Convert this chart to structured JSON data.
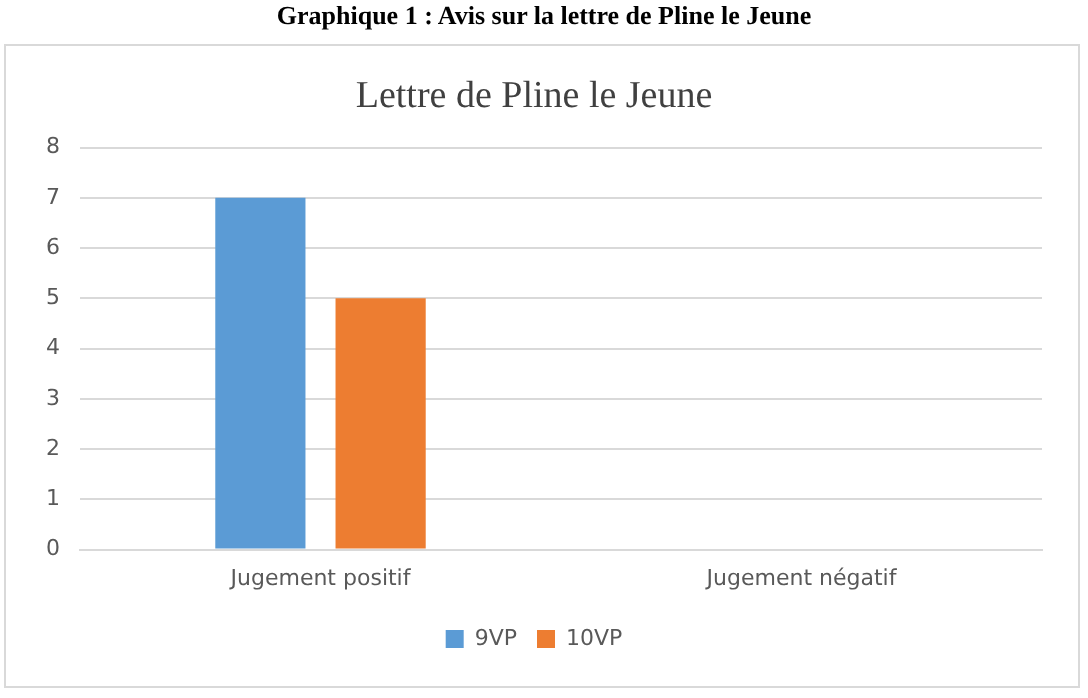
{
  "chart_data": {
    "type": "bar",
    "title": "Graphique 1 : Avis sur la lettre de Pline le Jeune",
    "subtitle": "Lettre de Pline le Jeune",
    "categories": [
      "Jugement positif",
      "Jugement négatif"
    ],
    "series": [
      {
        "name": "9VP",
        "color": "#5b9bd5",
        "values": [
          7,
          0
        ]
      },
      {
        "name": "10VP",
        "color": "#ed7d31",
        "values": [
          5,
          0
        ]
      }
    ],
    "ylim": [
      0,
      8
    ],
    "yticks": [
      0,
      1,
      2,
      3,
      4,
      5,
      6,
      7,
      8
    ],
    "grid": "y",
    "legend": "bottom"
  }
}
